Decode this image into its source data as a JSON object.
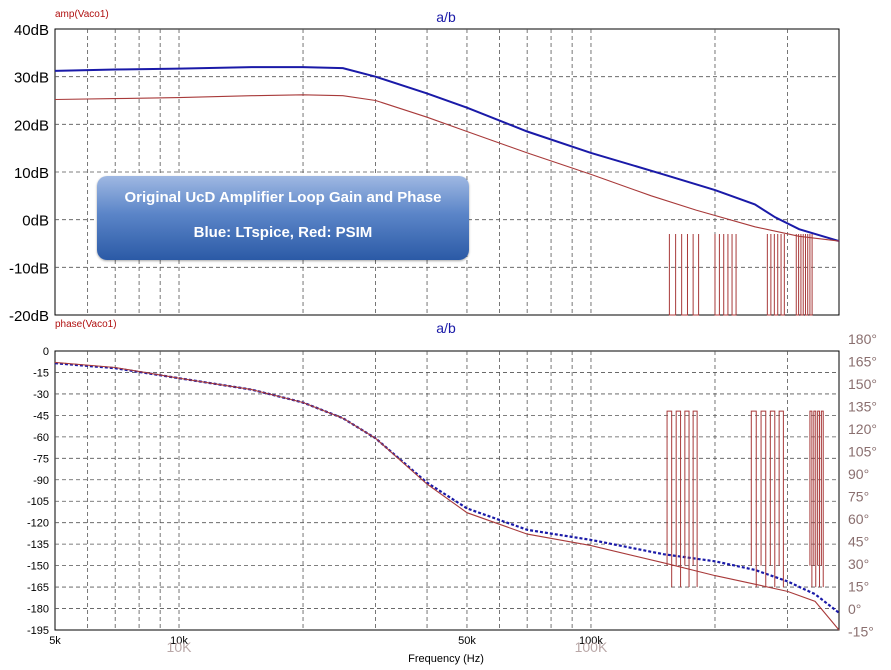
{
  "colors": {
    "blue": "#1a1aa8",
    "red": "#a83a3a",
    "grid": "#000000",
    "axis_text": "#000000",
    "right_axis_text": "#8a6f6f",
    "small_label": "#b01010"
  },
  "annotation": {
    "line1": "Original UcD Amplifier Loop Gain and Phase",
    "line2": "Blue: LTspice, Red: PSIM"
  },
  "chart_data": [
    {
      "type": "line",
      "panel": "amplitude",
      "title": "a/b",
      "trace_label": "amp(Vaco1)",
      "xscale": "log",
      "xlim": [
        5000,
        400000
      ],
      "ylim": [
        -20,
        40
      ],
      "yticks": [
        "40dB",
        "30dB",
        "20dB",
        "10dB",
        "0dB",
        "-10dB",
        "-20dB"
      ],
      "ytick_values": [
        40,
        30,
        20,
        10,
        0,
        -10,
        -20
      ],
      "grid": true,
      "series": [
        {
          "name": "LTspice",
          "color": "#1a1aa8",
          "x": [
            5000,
            7000,
            10000,
            15000,
            20000,
            25000,
            30000,
            40000,
            50000,
            70000,
            100000,
            150000,
            200000,
            250000,
            280000,
            320000,
            400000
          ],
          "y": [
            31.2,
            31.5,
            31.7,
            32.0,
            32.0,
            31.8,
            30.0,
            26.5,
            23.5,
            18.5,
            14.0,
            9.5,
            6.2,
            3.2,
            0.5,
            -2.0,
            -4.5
          ]
        },
        {
          "name": "PSIM",
          "color": "#a83a3a",
          "x": [
            5000,
            7000,
            10000,
            15000,
            20000,
            25000,
            30000,
            40000,
            50000,
            70000,
            100000,
            140000,
            180000,
            250000,
            320000,
            400000
          ],
          "y": [
            25.2,
            25.4,
            25.6,
            26.0,
            26.2,
            26.0,
            25.0,
            21.5,
            18.5,
            14.0,
            9.5,
            5.0,
            2.0,
            -1.5,
            -3.5,
            -4.5
          ]
        }
      ]
    },
    {
      "type": "line",
      "panel": "phase",
      "title": "a/b",
      "trace_label": "phase(Vaco1)",
      "xscale": "log",
      "xlim": [
        5000,
        400000
      ],
      "xlabel": "Frequency (Hz)",
      "xtick_labels": [
        {
          "label": "5k",
          "x": 5000
        },
        {
          "label": "10k",
          "x": 10000
        },
        {
          "label": "50k",
          "x": 50000
        },
        {
          "label": "100k",
          "x": 100000
        }
      ],
      "xtick_labels_large": [
        {
          "label": "10K",
          "x": 10000
        },
        {
          "label": "100K",
          "x": 100000
        }
      ],
      "ylim": [
        -195,
        0
      ],
      "yticks": [
        "0",
        "-15",
        "-30",
        "-45",
        "-60",
        "-75",
        "-90",
        "-105",
        "-120",
        "-135",
        "-150",
        "-165",
        "-180",
        "-195"
      ],
      "ytick_values": [
        0,
        -15,
        -30,
        -45,
        -60,
        -75,
        -90,
        -105,
        -120,
        -135,
        -150,
        -165,
        -180,
        -195
      ],
      "y2ticks": [
        "180°",
        "165°",
        "150°",
        "135°",
        "120°",
        "105°",
        "90°",
        "75°",
        "60°",
        "45°",
        "30°",
        "15°",
        "0°",
        "-15°"
      ],
      "grid": true,
      "series": [
        {
          "name": "LTspice",
          "color": "#1a1aa8",
          "x": [
            5000,
            7000,
            10000,
            15000,
            20000,
            25000,
            30000,
            40000,
            50000,
            70000,
            100000,
            150000,
            200000,
            250000,
            300000,
            350000,
            400000
          ],
          "y": [
            -8.5,
            -12,
            -19,
            -27,
            -36,
            -47,
            -61,
            -92,
            -110,
            -125,
            -132,
            -142,
            -147,
            -153,
            -161,
            -170,
            -183
          ]
        },
        {
          "name": "PSIM",
          "color": "#a83a3a",
          "x": [
            5000,
            7000,
            10000,
            15000,
            20000,
            25000,
            30000,
            40000,
            50000,
            70000,
            100000,
            150000,
            200000,
            250000,
            300000,
            350000,
            400000
          ],
          "y": [
            -8,
            -11.5,
            -19,
            -27,
            -36,
            -47,
            -61,
            -93,
            -113,
            -128,
            -136,
            -148,
            -157,
            -163,
            -168,
            -175,
            -195
          ]
        }
      ]
    }
  ]
}
